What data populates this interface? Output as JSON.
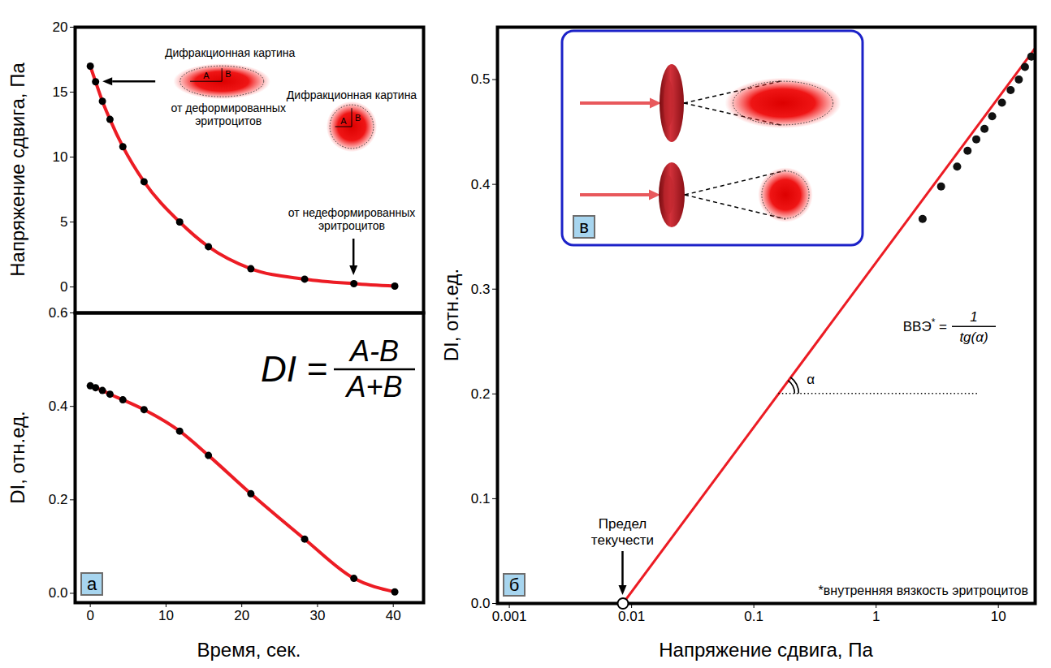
{
  "chart_data": [
    {
      "type": "line",
      "ylabel": "Напряжение сдвига, Па",
      "x": [
        0,
        0.7,
        1.6,
        2.6,
        4.3,
        7.1,
        11.8,
        15.6,
        21.2,
        28.3,
        34.8,
        40.2
      ],
      "values": [
        17,
        15.8,
        14.3,
        12.9,
        10.8,
        8.1,
        5,
        3.1,
        1.4,
        0.6,
        0.25,
        0.06
      ],
      "color": "#ec1c24",
      "marker": "circle",
      "xlim": [
        -2,
        44
      ],
      "ylim": [
        -2,
        20
      ],
      "yticks": [
        0,
        5,
        10,
        15,
        20
      ],
      "tick_labels": "y",
      "annotations": [
        {
          "title": "Дифракционная картина",
          "caption": [
            "от деформированных",
            "эритроцитов"
          ],
          "labels": [
            "A",
            "B"
          ],
          "marker": "ellipse",
          "x": 0.7,
          "y": 15.8
        },
        {
          "title": "Дифракционная картина",
          "caption": [
            "от недеформированных",
            "эритроцитов"
          ],
          "labels": [
            "A",
            "B"
          ],
          "marker": "circle",
          "x": 34.8,
          "y": 0.25
        }
      ]
    },
    {
      "type": "line",
      "panel_label": "а",
      "xlabel": "Время, сек.",
      "ylabel": "DI, отн.ед.",
      "x": [
        0,
        0.7,
        1.6,
        2.6,
        4.3,
        7.1,
        11.8,
        15.6,
        21.2,
        28.3,
        34.8,
        40.2
      ],
      "values": [
        0.444,
        0.44,
        0.434,
        0.426,
        0.414,
        0.393,
        0.347,
        0.295,
        0.213,
        0.116,
        0.032,
        0.003
      ],
      "color": "#ec1c24",
      "marker": "circle",
      "xlim": [
        -2,
        44
      ],
      "ylim": [
        -0.02,
        0.6
      ],
      "xticks": [
        0,
        10,
        20,
        30,
        40
      ],
      "yticks": [
        {
          "value": 0,
          "label": "0.0"
        },
        0.2,
        0.4,
        0.6
      ],
      "formula": {
        "lhs": "DI",
        "relation": "=",
        "numerator": "A-B",
        "denominator": "A+B"
      }
    },
    {
      "type": "scatter",
      "panel_label": "б",
      "xlabel": "Напряжение сдвига, Па",
      "ylabel": "DI, отн.ед.",
      "log": "x",
      "x": [
        2.4,
        3.4,
        4.6,
        5.6,
        6.6,
        7.7,
        8.9,
        10.7,
        12.6,
        14.7,
        16.5,
        18.6
      ],
      "values": [
        0.367,
        0.398,
        0.417,
        0.432,
        0.443,
        0.453,
        0.465,
        0.478,
        0.49,
        0.5,
        0.512,
        0.522
      ],
      "color": "#111111",
      "marker": "circle",
      "trend_line": {
        "x": [
          0.0085,
          20
        ],
        "values": [
          0,
          0.53
        ],
        "color": "#ec1c24"
      },
      "xlim": [
        0.0008,
        20
      ],
      "xticks": [
        0.001,
        0.01,
        0.1,
        1,
        10
      ],
      "ylim": [
        0,
        0.55
      ],
      "yticks": [
        {
          "value": 0,
          "label": "0.0"
        },
        0.1,
        0.2,
        0.3,
        0.4,
        0.5
      ],
      "yield_point": {
        "x": 0.0085,
        "y": 0,
        "label": "Предел текучести"
      },
      "angle": {
        "x": [
          0.16,
          6.8
        ],
        "y": 0.2,
        "label": "α"
      },
      "formula": {
        "lhs": "ВВЭ",
        "mark": "*",
        "relation": "=",
        "numerator": "1",
        "denominator": "tg(α)"
      },
      "footnote": "*внутренняя вязкость эритроцитов",
      "inset": {
        "panel_label": "в"
      }
    }
  ]
}
